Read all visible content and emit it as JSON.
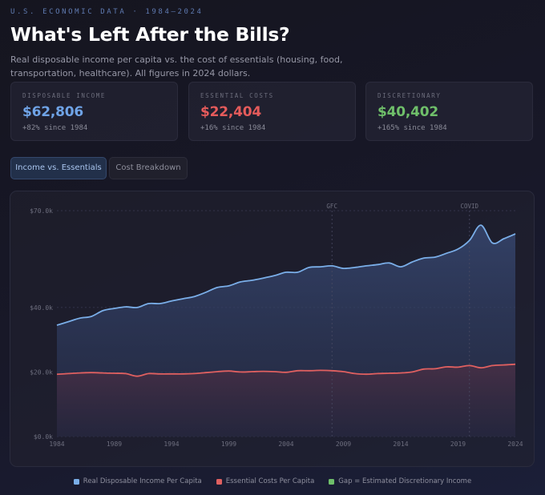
{
  "header": {
    "eyebrow": "U.S. ECONOMIC DATA · 1984–2024",
    "title": "What's Left After the Bills?",
    "subtitle": "Real disposable income per capita vs. the cost of essentials (housing, food, transportation, healthcare). All figures in 2024 dollars."
  },
  "stats": [
    {
      "label": "DISPOSABLE INCOME",
      "value": "$62,806",
      "change": "+82% since 1984",
      "color": "#6fa3e6"
    },
    {
      "label": "ESSENTIAL COSTS",
      "value": "$22,404",
      "change": "+16% since 1984",
      "color": "#e55b5b"
    },
    {
      "label": "DISCRETIONARY",
      "value": "$40,402",
      "change": "+165% since 1984",
      "color": "#6fbf6a"
    }
  ],
  "tabs": [
    {
      "label": "Income vs. Essentials",
      "active": true
    },
    {
      "label": "Cost Breakdown",
      "active": false
    }
  ],
  "colors": {
    "income": "#7aaee8",
    "costs": "#e06060",
    "gap": "#6fbf6a"
  },
  "chart_data": {
    "type": "area",
    "title": "",
    "xlabel": "",
    "ylabel": "",
    "x": [
      1984,
      1985,
      1986,
      1987,
      1988,
      1989,
      1990,
      1991,
      1992,
      1993,
      1994,
      1995,
      1996,
      1997,
      1998,
      1999,
      2000,
      2001,
      2002,
      2003,
      2004,
      2005,
      2006,
      2007,
      2008,
      2009,
      2010,
      2011,
      2012,
      2013,
      2014,
      2015,
      2016,
      2017,
      2018,
      2019,
      2020,
      2021,
      2022,
      2023,
      2024
    ],
    "series": [
      {
        "name": "Real Disposable Income Per Capita",
        "values": [
          34500,
          35600,
          36700,
          37200,
          39000,
          39700,
          40200,
          40000,
          41200,
          41200,
          42000,
          42700,
          43400,
          44700,
          46200,
          46700,
          47900,
          48400,
          49100,
          49900,
          50900,
          50900,
          52400,
          52600,
          52900,
          52100,
          52400,
          52900,
          53300,
          53800,
          52600,
          54100,
          55300,
          55600,
          56800,
          58100,
          60800,
          65500,
          60000,
          61300,
          62806
        ]
      },
      {
        "name": "Essential Costs Per Capita",
        "values": [
          19300,
          19500,
          19700,
          19800,
          19700,
          19600,
          19500,
          18700,
          19500,
          19400,
          19400,
          19400,
          19500,
          19800,
          20100,
          20300,
          20000,
          20100,
          20200,
          20100,
          19900,
          20400,
          20400,
          20500,
          20400,
          20100,
          19500,
          19300,
          19500,
          19600,
          19700,
          20000,
          20900,
          21000,
          21600,
          21500,
          22000,
          21300,
          22000,
          22200,
          22404
        ]
      }
    ],
    "legend": [
      "Real Disposable Income Per Capita",
      "Essential Costs Per Capita",
      "Gap = Estimated Discretionary Income"
    ],
    "y_ticks": [
      "$0.0k",
      "$20.0k",
      "$40.0k",
      "$70.0k"
    ],
    "y_tick_values": [
      0,
      20000,
      40000,
      70000
    ],
    "x_ticks": [
      "1984",
      "1989",
      "1994",
      "1999",
      "2004",
      "2009",
      "2014",
      "2019",
      "2024"
    ],
    "x_tick_values": [
      1984,
      1989,
      1994,
      1999,
      2004,
      2009,
      2014,
      2019,
      2024
    ],
    "xlim": [
      1984,
      2024
    ],
    "ylim": [
      0,
      70000
    ],
    "grid": true,
    "legend_position": "bottom-center",
    "annotations": [
      {
        "label": "GFC",
        "x": 2008
      },
      {
        "label": "COVID",
        "x": 2020
      }
    ]
  }
}
